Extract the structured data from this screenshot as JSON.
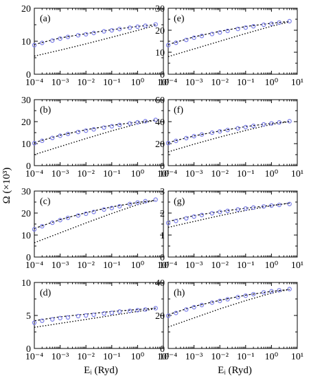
{
  "figure": {
    "ylabel": "Ω (×10³)",
    "xlabel_left": "Eᵢ (Ryd)",
    "xlabel_right": "Eᵢ (Ryd)",
    "x_tick_labels": [
      "10⁻⁴",
      "10⁻³",
      "10⁻²",
      "10⁻¹",
      "10⁰",
      "10¹"
    ],
    "colors": {
      "circles": "#7a7de8",
      "lines": "#000000"
    }
  },
  "chart_data": [
    {
      "panel": "(a)",
      "type": "line",
      "xscale": "log",
      "xlim": [
        0.0001,
        10
      ],
      "ylim": [
        0,
        20
      ],
      "yticks": [
        0,
        10,
        20
      ],
      "series": [
        {
          "style": "dashed-line",
          "x": [
            0.0001,
            0.001,
            0.01,
            0.1,
            1,
            5
          ],
          "y": [
            9.0,
            11.0,
            12.3,
            13.5,
            14.5,
            15.0
          ]
        },
        {
          "style": "dotted-line",
          "x": [
            0.0001,
            0.001,
            0.01,
            0.1,
            1,
            5
          ],
          "y": [
            5.5,
            7.3,
            9.2,
            11.2,
            13.3,
            14.8
          ]
        },
        {
          "style": "circles",
          "x": [
            0.0001,
            0.0002,
            0.0005,
            0.001,
            0.002,
            0.005,
            0.01,
            0.02,
            0.05,
            0.1,
            0.2,
            0.5,
            1,
            2,
            5
          ],
          "y": [
            8.8,
            9.5,
            10.2,
            10.8,
            11.3,
            11.8,
            12.1,
            12.5,
            13.0,
            13.3,
            13.7,
            14.1,
            14.4,
            14.7,
            15.1
          ]
        }
      ]
    },
    {
      "panel": "(e)",
      "type": "line",
      "xscale": "log",
      "xlim": [
        0.0001,
        10
      ],
      "ylim": [
        0,
        30
      ],
      "yticks": [
        0,
        10,
        20,
        30
      ],
      "series": [
        {
          "style": "dashed-line",
          "x": [
            0.0001,
            0.001,
            0.01,
            0.1,
            1,
            5
          ],
          "y": [
            13.5,
            17.0,
            19.5,
            21.7,
            23.2,
            24.0
          ]
        },
        {
          "style": "dotted-line",
          "x": [
            0.0001,
            0.001,
            0.01,
            0.1,
            1,
            5
          ],
          "y": [
            8.0,
            11.5,
            15.0,
            18.5,
            21.8,
            23.8
          ]
        },
        {
          "style": "circles",
          "x": [
            0.0001,
            0.0002,
            0.0005,
            0.001,
            0.002,
            0.005,
            0.01,
            0.02,
            0.05,
            0.1,
            0.2,
            0.5,
            1,
            2,
            5
          ],
          "y": [
            13.2,
            14.3,
            15.6,
            16.6,
            17.4,
            18.3,
            19.0,
            19.7,
            20.6,
            21.2,
            21.8,
            22.5,
            23.0,
            23.5,
            24.1
          ]
        }
      ]
    },
    {
      "panel": "(b)",
      "type": "line",
      "xscale": "log",
      "xlim": [
        0.0001,
        10
      ],
      "ylim": [
        0,
        30
      ],
      "yticks": [
        0,
        10,
        20,
        30
      ],
      "series": [
        {
          "style": "dashed-line",
          "x": [
            0.0001,
            0.001,
            0.01,
            0.1,
            1,
            5
          ],
          "y": [
            10.5,
            13.8,
            16.3,
            18.3,
            19.8,
            20.7
          ]
        },
        {
          "style": "dotted-line",
          "x": [
            0.0001,
            0.001,
            0.01,
            0.1,
            1,
            5
          ],
          "y": [
            5.0,
            8.7,
            12.3,
            15.8,
            19.0,
            20.7
          ]
        },
        {
          "style": "circles",
          "x": [
            0.0001,
            0.0002,
            0.0005,
            0.001,
            0.002,
            0.005,
            0.01,
            0.02,
            0.05,
            0.1,
            0.2,
            0.5,
            1,
            2,
            5
          ],
          "y": [
            10.2,
            11.3,
            12.6,
            13.6,
            14.4,
            15.3,
            15.9,
            16.5,
            17.3,
            17.9,
            18.5,
            19.2,
            19.7,
            20.2,
            20.8
          ]
        }
      ]
    },
    {
      "panel": "(f)",
      "type": "line",
      "xscale": "log",
      "xlim": [
        0.0001,
        10
      ],
      "ylim": [
        0,
        60
      ],
      "yticks": [
        0,
        20,
        40,
        60
      ],
      "series": [
        {
          "style": "dashed-line",
          "x": [
            0.0001,
            0.001,
            0.01,
            0.1,
            1,
            5
          ],
          "y": [
            21.0,
            27.0,
            31.5,
            35.5,
            38.5,
            40.2
          ]
        },
        {
          "style": "dotted-line",
          "x": [
            0.0001,
            0.001,
            0.01,
            0.1,
            1,
            5
          ],
          "y": [
            12.5,
            19.5,
            26.0,
            32.0,
            37.5,
            40.0
          ]
        },
        {
          "style": "circles",
          "x": [
            0.0001,
            0.0002,
            0.0005,
            0.001,
            0.002,
            0.005,
            0.01,
            0.02,
            0.05,
            0.1,
            0.2,
            0.5,
            1,
            2,
            5
          ],
          "y": [
            20.5,
            22.5,
            25.0,
            26.8,
            28.3,
            30.0,
            31.2,
            32.4,
            33.9,
            35.0,
            36.2,
            37.5,
            38.4,
            39.3,
            40.4
          ]
        }
      ]
    },
    {
      "panel": "(c)",
      "type": "line",
      "xscale": "log",
      "xlim": [
        0.0001,
        10
      ],
      "ylim": [
        0,
        30
      ],
      "yticks": [
        0,
        10,
        20,
        30
      ],
      "series": [
        {
          "style": "dashed-line",
          "x": [
            0.0001,
            0.001,
            0.01,
            0.1,
            1,
            5
          ],
          "y": [
            13.0,
            17.0,
            20.2,
            22.8,
            24.8,
            25.8
          ]
        },
        {
          "style": "dotted-line",
          "x": [
            0.0001,
            0.001,
            0.01,
            0.1,
            1,
            5
          ],
          "y": [
            6.5,
            11.0,
            15.5,
            19.8,
            23.8,
            25.8
          ]
        },
        {
          "style": "circles",
          "x": [
            0.0001,
            0.0002,
            0.0005,
            0.001,
            0.002,
            0.005,
            0.01,
            0.02,
            0.05,
            0.1,
            0.2,
            0.5,
            1,
            2,
            5
          ],
          "y": [
            12.6,
            14.0,
            15.6,
            16.8,
            17.8,
            18.9,
            19.7,
            20.5,
            21.6,
            22.3,
            23.1,
            24.1,
            24.8,
            25.4,
            26.1
          ]
        }
      ]
    },
    {
      "panel": "(g)",
      "type": "line",
      "xscale": "log",
      "xlim": [
        0.0001,
        10
      ],
      "ylim": [
        0,
        3
      ],
      "yticks": [
        0,
        1,
        2,
        3
      ],
      "series": [
        {
          "style": "dashed-line",
          "x": [
            0.0001,
            0.001,
            0.01,
            0.1,
            1,
            5
          ],
          "y": [
            1.62,
            1.88,
            2.07,
            2.22,
            2.35,
            2.45
          ]
        },
        {
          "style": "dotted-line",
          "x": [
            0.0001,
            0.001,
            0.01,
            0.1,
            1,
            5
          ],
          "y": [
            1.35,
            1.62,
            1.88,
            2.12,
            2.33,
            2.45
          ]
        },
        {
          "style": "circles",
          "x": [
            0.0001,
            0.0002,
            0.0005,
            0.001,
            0.002,
            0.005,
            0.01,
            0.02,
            0.05,
            0.1,
            0.2,
            0.5,
            1,
            2,
            5
          ],
          "y": [
            1.55,
            1.64,
            1.76,
            1.84,
            1.91,
            1.99,
            2.05,
            2.1,
            2.16,
            2.21,
            2.25,
            2.3,
            2.34,
            2.37,
            2.41
          ]
        }
      ]
    },
    {
      "panel": "(d)",
      "type": "line",
      "xscale": "log",
      "xlim": [
        0.0001,
        10
      ],
      "ylim": [
        0,
        10
      ],
      "yticks": [
        0,
        5,
        10
      ],
      "series": [
        {
          "style": "dashed-line",
          "x": [
            0.0001,
            0.001,
            0.01,
            0.1,
            1,
            5
          ],
          "y": [
            4.2,
            4.8,
            5.2,
            5.6,
            5.9,
            6.1
          ]
        },
        {
          "style": "dotted-line",
          "x": [
            0.0001,
            0.001,
            0.01,
            0.1,
            1,
            5
          ],
          "y": [
            3.2,
            3.8,
            4.4,
            5.0,
            5.6,
            6.0
          ]
        },
        {
          "style": "circles",
          "x": [
            0.0001,
            0.0002,
            0.0005,
            0.001,
            0.002,
            0.005,
            0.01,
            0.02,
            0.05,
            0.1,
            0.2,
            0.5,
            1,
            2,
            5
          ],
          "y": [
            3.9,
            4.2,
            4.4,
            4.6,
            4.7,
            4.9,
            5.0,
            5.1,
            5.3,
            5.4,
            5.6,
            5.7,
            5.8,
            5.9,
            6.1
          ]
        }
      ]
    },
    {
      "panel": "(h)",
      "type": "line",
      "xscale": "log",
      "xlim": [
        0.0001,
        10
      ],
      "ylim": [
        0,
        40
      ],
      "yticks": [
        0,
        20,
        40
      ],
      "series": [
        {
          "style": "dashed-line",
          "x": [
            0.0001,
            0.001,
            0.01,
            0.1,
            1,
            5
          ],
          "y": [
            20.5,
            25.5,
            29.2,
            32.3,
            34.6,
            35.8
          ]
        },
        {
          "style": "dotted-line",
          "x": [
            0.0001,
            0.001,
            0.01,
            0.1,
            1,
            5
          ],
          "y": [
            13.0,
            18.5,
            24.0,
            29.0,
            33.5,
            35.8
          ]
        },
        {
          "style": "circles",
          "x": [
            0.0001,
            0.0002,
            0.0005,
            0.001,
            0.002,
            0.005,
            0.01,
            0.02,
            0.05,
            0.1,
            0.2,
            0.5,
            1,
            2,
            5
          ],
          "y": [
            19.8,
            21.5,
            23.6,
            25.0,
            26.3,
            27.8,
            28.8,
            29.8,
            31.1,
            32.0,
            32.9,
            34.0,
            34.7,
            35.3,
            36.0
          ]
        }
      ]
    }
  ]
}
